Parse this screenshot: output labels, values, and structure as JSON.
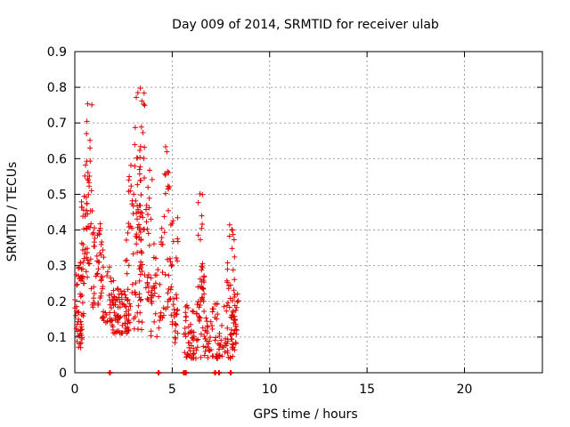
{
  "chart_data": {
    "type": "scatter",
    "title": "Day 009 of 2014, SRMTID for receiver ulab",
    "xlabel": "GPS time / hours",
    "ylabel": "SRMTID / TECUs",
    "xlim": [
      0,
      24
    ],
    "ylim": [
      0,
      0.9
    ],
    "x_ticks": [
      0,
      5,
      10,
      15,
      20
    ],
    "y_ticks": [
      0,
      0.1,
      0.2,
      0.3,
      0.4,
      0.5,
      0.6,
      0.7,
      0.8,
      0.9
    ],
    "grid": true,
    "marker": "+",
    "marker_color": "#e00000",
    "clusters": [
      {
        "t0": 0.0,
        "t1": 0.45,
        "lo": 0.07,
        "hi": 0.31,
        "n": 50
      },
      {
        "t0": 0.3,
        "t1": 0.8,
        "lo": 0.25,
        "hi": 0.5,
        "n": 40
      },
      {
        "t0": 0.5,
        "t1": 0.9,
        "lo": 0.45,
        "hi": 0.78,
        "n": 20
      },
      {
        "t0": 0.8,
        "t1": 1.5,
        "lo": 0.18,
        "hi": 0.42,
        "n": 45
      },
      {
        "t0": 1.4,
        "t1": 2.0,
        "lo": 0.14,
        "hi": 0.3,
        "n": 35
      },
      {
        "t0": 1.9,
        "t1": 2.8,
        "lo": 0.11,
        "hi": 0.24,
        "n": 70
      },
      {
        "t0": 2.5,
        "t1": 3.5,
        "lo": 0.12,
        "hi": 0.45,
        "n": 50
      },
      {
        "t0": 2.7,
        "t1": 3.4,
        "lo": 0.4,
        "hi": 0.65,
        "n": 30
      },
      {
        "t0": 3.1,
        "t1": 3.6,
        "lo": 0.6,
        "hi": 0.83,
        "n": 15
      },
      {
        "t0": 3.3,
        "t1": 4.2,
        "lo": 0.2,
        "hi": 0.6,
        "n": 55
      },
      {
        "t0": 3.8,
        "t1": 4.4,
        "lo": 0.1,
        "hi": 0.3,
        "n": 20
      },
      {
        "t0": 4.4,
        "t1": 5.3,
        "lo": 0.15,
        "hi": 0.45,
        "n": 45
      },
      {
        "t0": 4.6,
        "t1": 4.9,
        "lo": 0.45,
        "hi": 0.64,
        "n": 12
      },
      {
        "t0": 5.0,
        "t1": 5.3,
        "lo": 0.08,
        "hi": 0.2,
        "n": 15
      },
      {
        "t0": 5.6,
        "t1": 8.3,
        "lo": 0.04,
        "hi": 0.2,
        "n": 170
      },
      {
        "t0": 6.3,
        "t1": 6.6,
        "lo": 0.2,
        "hi": 0.55,
        "n": 20
      },
      {
        "t0": 6.4,
        "t1": 6.7,
        "lo": 0.2,
        "hi": 0.3,
        "n": 10
      },
      {
        "t0": 7.8,
        "t1": 8.2,
        "lo": 0.2,
        "hi": 0.46,
        "n": 20
      },
      {
        "t0": 8.1,
        "t1": 8.4,
        "lo": 0.08,
        "hi": 0.24,
        "n": 15
      }
    ],
    "zero_points": [
      1.8,
      4.3,
      5.6,
      5.7,
      7.2,
      7.4,
      8.0
    ]
  }
}
